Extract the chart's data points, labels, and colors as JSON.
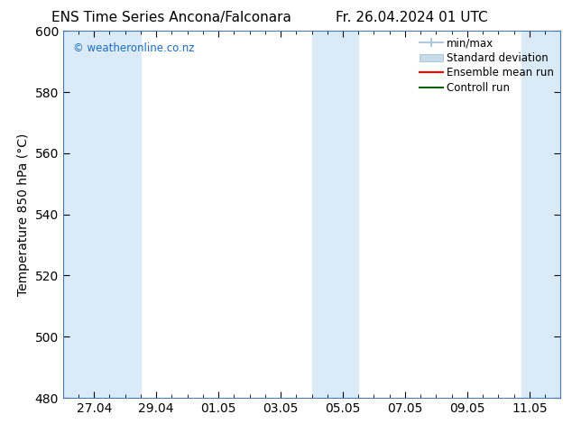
{
  "title_left": "ENS Time Series Ancona/Falconara",
  "title_right": "Fr. 26.04.2024 01 UTC",
  "ylabel": "Temperature 850 hPa (°C)",
  "ylim": [
    480,
    600
  ],
  "yticks": [
    480,
    500,
    520,
    540,
    560,
    580,
    600
  ],
  "xlim_start": 0,
  "xlim_end": 16,
  "xtick_labels": [
    "27.04",
    "29.04",
    "01.05",
    "03.05",
    "05.05",
    "07.05",
    "09.05",
    "11.05"
  ],
  "xtick_positions": [
    1,
    3,
    5,
    7,
    9,
    11,
    13,
    15
  ],
  "background_color": "#ffffff",
  "plot_bg_color": "#ffffff",
  "shaded_bands": [
    {
      "x_start": 0.0,
      "x_end": 2.0,
      "color": "#daeaf6"
    },
    {
      "x_start": 2.0,
      "x_end": 2.5,
      "color": "#daeaf6"
    },
    {
      "x_start": 8.0,
      "x_end": 8.75,
      "color": "#daeaf6"
    },
    {
      "x_start": 8.75,
      "x_end": 9.5,
      "color": "#daeaf6"
    },
    {
      "x_start": 14.75,
      "x_end": 16.0,
      "color": "#daeaf6"
    }
  ],
  "watermark": "© weatheronline.co.nz",
  "watermark_color": "#1a6ec0",
  "legend_items": [
    {
      "label": "min/max",
      "color": "#aec8dc",
      "type": "errorbar"
    },
    {
      "label": "Standard deviation",
      "color": "#c8dce8",
      "type": "fill"
    },
    {
      "label": "Ensemble mean run",
      "color": "#ff0000",
      "type": "line"
    },
    {
      "label": "Controll run",
      "color": "#006400",
      "type": "line"
    }
  ],
  "border_color": "#4a7aaf",
  "tick_color": "#000000",
  "font_size": 10,
  "title_font_size": 11,
  "legend_font_size": 8.5
}
